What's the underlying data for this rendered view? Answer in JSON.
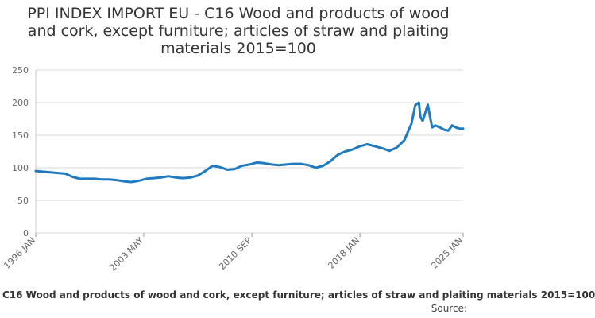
{
  "chart_data": {
    "type": "line",
    "title_lines": [
      "PPI INDEX IMPORT EU - C16 Wood and products of wood",
      "and cork, except furniture; articles of straw and plaiting",
      "materials 2015=100"
    ],
    "xlabel": "",
    "ylabel": "",
    "ylim": [
      0,
      250
    ],
    "yticks": [
      0,
      50,
      100,
      150,
      200,
      250
    ],
    "xlim": [
      1996.0,
      2025.0
    ],
    "xticks": [
      {
        "label": "1996 JAN",
        "value": 1996.0
      },
      {
        "label": "2003 MAY",
        "value": 2003.33
      },
      {
        "label": "2010 SEP",
        "value": 2010.67
      },
      {
        "label": "2018 JAN",
        "value": 2018.0
      },
      {
        "label": "2025 JAN",
        "value": 2025.0
      }
    ],
    "grid": "horizontal",
    "legend": "bottom",
    "series": [
      {
        "name": "C16 Wood and products of wood and cork, except furniture; articles of straw and plaiting materials 2015=100",
        "color": "#1f7bc1",
        "x": [
          1996.0,
          1996.5,
          1997.0,
          1997.5,
          1998.0,
          1998.5,
          1999.0,
          1999.5,
          2000.0,
          2000.5,
          2001.0,
          2001.5,
          2002.0,
          2002.5,
          2003.0,
          2003.5,
          2004.0,
          2004.5,
          2005.0,
          2005.5,
          2006.0,
          2006.5,
          2007.0,
          2007.5,
          2008.0,
          2008.5,
          2009.0,
          2009.5,
          2010.0,
          2010.5,
          2011.0,
          2011.5,
          2012.0,
          2012.5,
          2013.0,
          2013.5,
          2014.0,
          2014.5,
          2015.0,
          2015.5,
          2016.0,
          2016.5,
          2017.0,
          2017.5,
          2018.0,
          2018.5,
          2019.0,
          2019.5,
          2020.0,
          2020.5,
          2021.0,
          2021.5,
          2021.75,
          2022.0,
          2022.1,
          2022.25,
          2022.4,
          2022.6,
          2022.75,
          2022.9,
          2023.1,
          2023.3,
          2023.5,
          2023.75,
          2024.0,
          2024.25,
          2024.5,
          2024.75,
          2025.0
        ],
        "values": [
          95,
          94,
          93,
          92,
          91,
          86,
          83,
          83,
          83,
          82,
          82,
          81,
          79,
          78,
          80,
          83,
          84,
          85,
          87,
          85,
          84,
          85,
          88,
          95,
          103,
          101,
          97,
          98,
          103,
          105,
          108,
          107,
          105,
          104,
          105,
          106,
          106,
          104,
          100,
          103,
          110,
          120,
          125,
          128,
          133,
          136,
          133,
          130,
          126,
          131,
          142,
          168,
          196,
          200,
          178,
          172,
          182,
          197,
          178,
          162,
          165,
          163,
          161,
          158,
          157,
          165,
          162,
          160,
          160
        ]
      }
    ]
  },
  "footer": {
    "legend_label": "C16 Wood and products of wood and cork, except furniture; articles of straw and plaiting materials 2015=100",
    "source_label": "Source:"
  }
}
